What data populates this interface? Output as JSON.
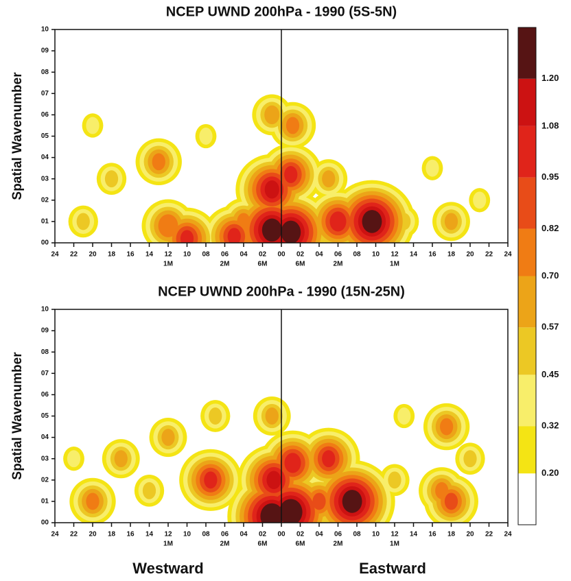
{
  "chart_data": [
    {
      "type": "contour",
      "title": "NCEP UWND 200hPa - 1990 (5S-5N)",
      "ylabel": "Spatial Wavenumber",
      "xlim": [
        -24,
        24
      ],
      "ylim": [
        0,
        10
      ],
      "xticks": [
        {
          "value": -24,
          "label": "24"
        },
        {
          "value": -22,
          "label": "22"
        },
        {
          "value": -20,
          "label": "20"
        },
        {
          "value": -18,
          "label": "18"
        },
        {
          "value": -16,
          "label": "16"
        },
        {
          "value": -14,
          "label": "14"
        },
        {
          "value": -12,
          "label": "12"
        },
        {
          "value": -10,
          "label": "10"
        },
        {
          "value": -8,
          "label": "08"
        },
        {
          "value": -6,
          "label": "06"
        },
        {
          "value": -4,
          "label": "04"
        },
        {
          "value": -2,
          "label": "02"
        },
        {
          "value": 0,
          "label": "00"
        },
        {
          "value": 2,
          "label": "02"
        },
        {
          "value": 4,
          "label": "04"
        },
        {
          "value": 6,
          "label": "06"
        },
        {
          "value": 8,
          "label": "08"
        },
        10,
        12,
        14,
        16,
        18,
        20,
        22,
        24
      ],
      "period_labels": [
        {
          "value": -12,
          "label": "1M"
        },
        {
          "value": -6,
          "label": "2M"
        },
        {
          "value": -2,
          "label": "6M"
        },
        {
          "value": 2,
          "label": "6M"
        },
        {
          "value": 6,
          "label": "2M"
        },
        {
          "value": 12,
          "label": "1M"
        }
      ],
      "yticks": [
        {
          "value": 0,
          "label": "00"
        },
        {
          "value": 1,
          "label": "01"
        },
        {
          "value": 2,
          "label": "02"
        },
        {
          "value": 3,
          "label": "03"
        },
        {
          "value": 4,
          "label": "04"
        },
        {
          "value": 5,
          "label": "05"
        },
        {
          "value": 6,
          "label": "06"
        },
        {
          "value": 7,
          "label": "07"
        },
        {
          "value": 8,
          "label": "08"
        },
        {
          "value": 9,
          "label": "09"
        },
        10
      ],
      "peaks": [
        {
          "x": -1,
          "y": 0.6,
          "value": 1.3
        },
        {
          "x": -1,
          "y": 2.5,
          "value": 1.1
        },
        {
          "x": -5,
          "y": 0.3,
          "value": 0.95
        },
        {
          "x": 1,
          "y": 0.5,
          "value": 1.3
        },
        {
          "x": 1,
          "y": 3.2,
          "value": 0.95
        },
        {
          "x": 1.2,
          "y": 5.5,
          "value": 0.7
        },
        {
          "x": 6,
          "y": 1,
          "value": 1.0
        },
        {
          "x": 9.6,
          "y": 1,
          "value": 1.3
        },
        {
          "x": -12,
          "y": 0.8,
          "value": 0.8
        },
        {
          "x": -10,
          "y": 0.2,
          "value": 0.95
        },
        {
          "x": -13,
          "y": 3.8,
          "value": 0.7
        },
        {
          "x": -1,
          "y": 6,
          "value": 0.6
        },
        {
          "x": -18,
          "y": 3,
          "value": 0.45
        },
        {
          "x": -20,
          "y": 5.5,
          "value": 0.32
        },
        {
          "x": -21,
          "y": 1,
          "value": 0.45
        },
        {
          "x": 5,
          "y": 3,
          "value": 0.57
        },
        {
          "x": 16,
          "y": 3.5,
          "value": 0.32
        },
        {
          "x": 18,
          "y": 1,
          "value": 0.57
        },
        {
          "x": 13,
          "y": 1,
          "value": 0.45
        },
        {
          "x": 21,
          "y": 2,
          "value": 0.32
        },
        {
          "x": -8,
          "y": 5,
          "value": 0.32
        },
        {
          "x": -4,
          "y": 1,
          "value": 0.7
        }
      ],
      "colorbar": {
        "ylim": [
          0.07,
          1.33
        ],
        "ticks": [
          {
            "value": 0.2,
            "label": "0.20"
          },
          0.32,
          0.45,
          0.57,
          {
            "value": 0.7,
            "label": "0.70"
          },
          0.82,
          0.95,
          1.08,
          {
            "value": 1.2,
            "label": "1.20"
          }
        ],
        "colors": [
          "#ffffff",
          "#f4e414",
          "#f8ee6a",
          "#ecc824",
          "#eca418",
          "#f07c14",
          "#e84c18",
          "#e0241a",
          "#cc1212",
          "#561414"
        ]
      }
    },
    {
      "type": "contour",
      "title": "NCEP UWND 200hPa - 1990 (15N-25N)",
      "ylabel": "Spatial Wavenumber",
      "xlim": [
        -24,
        24
      ],
      "ylim": [
        0,
        10
      ],
      "xticks": [
        {
          "value": -24,
          "label": "24"
        },
        {
          "value": -22,
          "label": "22"
        },
        {
          "value": -20,
          "label": "20"
        },
        {
          "value": -18,
          "label": "18"
        },
        {
          "value": -16,
          "label": "16"
        },
        {
          "value": -14,
          "label": "14"
        },
        {
          "value": -12,
          "label": "12"
        },
        {
          "value": -10,
          "label": "10"
        },
        {
          "value": -8,
          "label": "08"
        },
        {
          "value": -6,
          "label": "06"
        },
        {
          "value": -4,
          "label": "04"
        },
        {
          "value": -2,
          "label": "02"
        },
        {
          "value": 0,
          "label": "00"
        },
        {
          "value": 2,
          "label": "02"
        },
        {
          "value": 4,
          "label": "04"
        },
        {
          "value": 6,
          "label": "06"
        },
        {
          "value": 8,
          "label": "08"
        },
        10,
        12,
        14,
        16,
        18,
        20,
        22,
        24
      ],
      "period_labels": [
        {
          "value": -12,
          "label": "1M"
        },
        {
          "value": -6,
          "label": "2M"
        },
        {
          "value": -2,
          "label": "6M"
        },
        {
          "value": 2,
          "label": "6M"
        },
        {
          "value": 6,
          "label": "2M"
        },
        {
          "value": 12,
          "label": "1M"
        }
      ],
      "yticks": [
        {
          "value": 0,
          "label": "00"
        },
        {
          "value": 1,
          "label": "01"
        },
        {
          "value": 2,
          "label": "02"
        },
        {
          "value": 3,
          "label": "03"
        },
        {
          "value": 4,
          "label": "04"
        },
        {
          "value": 5,
          "label": "05"
        },
        {
          "value": 6,
          "label": "06"
        },
        {
          "value": 7,
          "label": "07"
        },
        {
          "value": 8,
          "label": "08"
        },
        {
          "value": 9,
          "label": "09"
        },
        10
      ],
      "peaks": [
        {
          "x": -1,
          "y": 0.3,
          "value": 1.35
        },
        {
          "x": -0.8,
          "y": 2,
          "value": 1.1
        },
        {
          "x": 1,
          "y": 0.5,
          "value": 1.35
        },
        {
          "x": 1.2,
          "y": 2.8,
          "value": 1.0
        },
        {
          "x": 5,
          "y": 3,
          "value": 0.95
        },
        {
          "x": 7.5,
          "y": 1,
          "value": 1.3
        },
        {
          "x": 4,
          "y": 1,
          "value": 0.82
        },
        {
          "x": -7.5,
          "y": 2,
          "value": 0.95
        },
        {
          "x": -12,
          "y": 4,
          "value": 0.57
        },
        {
          "x": -17,
          "y": 3,
          "value": 0.57
        },
        {
          "x": -20,
          "y": 1,
          "value": 0.7
        },
        {
          "x": -7,
          "y": 5,
          "value": 0.45
        },
        {
          "x": 17.5,
          "y": 4.5,
          "value": 0.7
        },
        {
          "x": 17,
          "y": 1.5,
          "value": 0.7
        },
        {
          "x": 18,
          "y": 1,
          "value": 0.82
        },
        {
          "x": -1,
          "y": 5,
          "value": 0.57
        },
        {
          "x": 12,
          "y": 2,
          "value": 0.45
        },
        {
          "x": 20,
          "y": 3,
          "value": 0.45
        },
        {
          "x": -22,
          "y": 3,
          "value": 0.32
        },
        {
          "x": 13,
          "y": 5,
          "value": 0.32
        },
        {
          "x": -14,
          "y": 1.5,
          "value": 0.45
        }
      ],
      "x_labels": [
        "Westward",
        "Eastward"
      ]
    }
  ]
}
